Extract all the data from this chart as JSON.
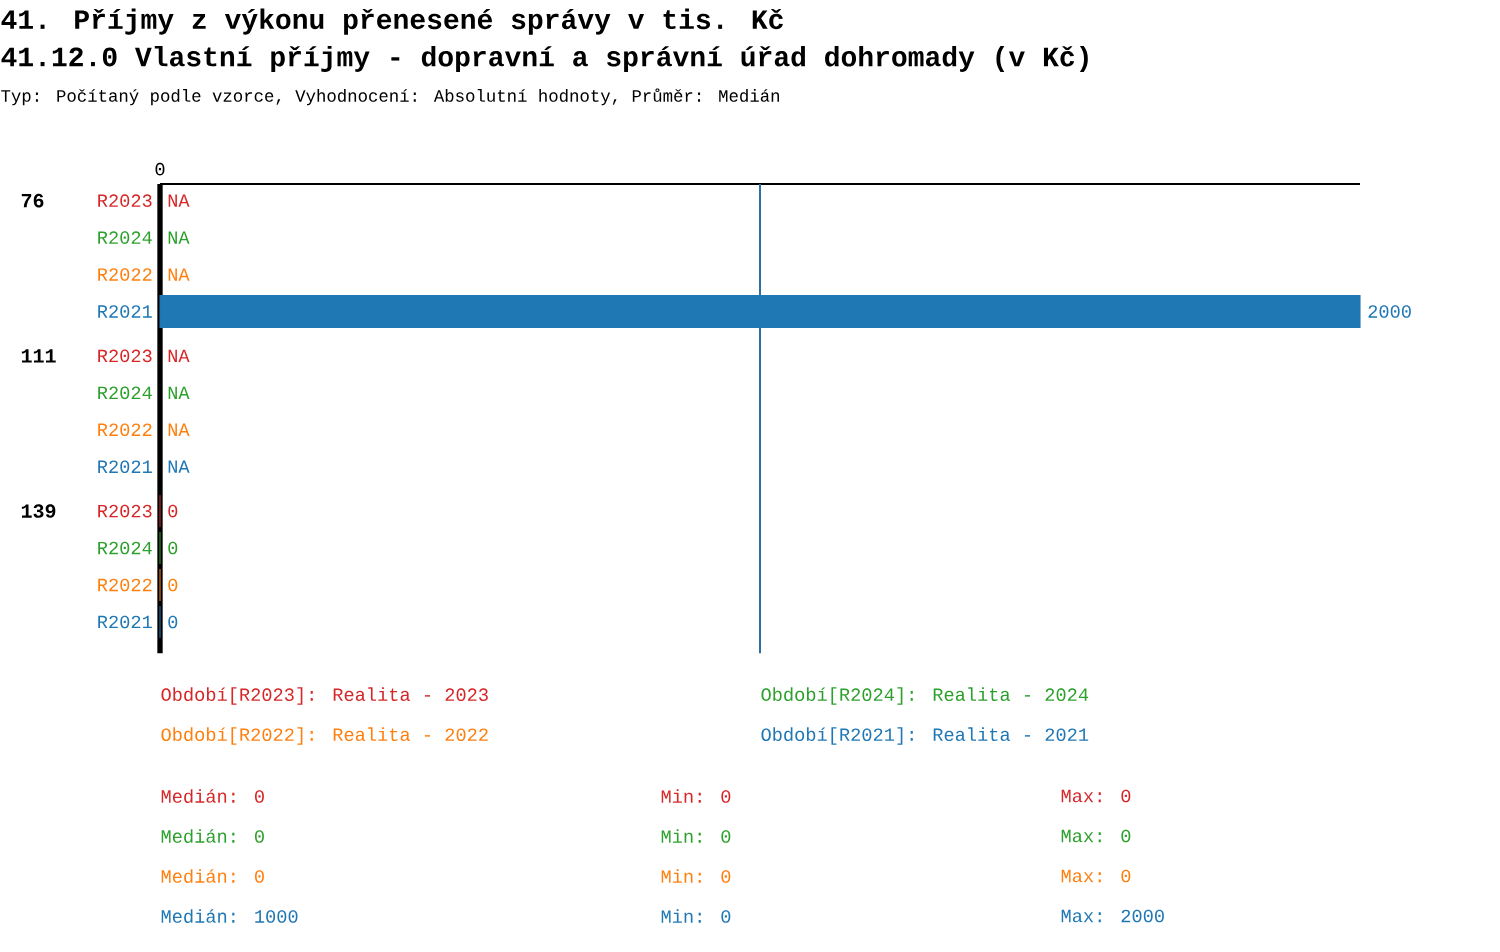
{
  "chart_data": {
    "type": "bar",
    "orientation": "horizontal",
    "title": "41. Příjmy z výkonu přenesené správy v tis. Kč",
    "subtitle": "41.12.0 Vlastní příjmy - dopravní a správní úřad dohromady (v Kč)",
    "categories": [
      "76",
      "111",
      "139"
    ],
    "series": [
      {
        "name": "R2023",
        "color": "#d62728",
        "values": [
          null,
          null,
          0
        ],
        "value_labels": [
          "NA",
          "NA",
          "0"
        ]
      },
      {
        "name": "R2024",
        "color": "#2ca02c",
        "values": [
          null,
          null,
          0
        ],
        "value_labels": [
          "NA",
          "NA",
          "0"
        ]
      },
      {
        "name": "R2022",
        "color": "#ff7f0e",
        "values": [
          null,
          null,
          0
        ],
        "value_labels": [
          "NA",
          "NA",
          "0"
        ]
      },
      {
        "name": "R2021",
        "color": "#1f77b4",
        "values": [
          2000,
          null,
          0
        ],
        "value_labels": [
          "2000",
          "NA",
          "0"
        ]
      }
    ],
    "ref_lines": [
      {
        "axis": "x",
        "value": 1000,
        "color": "#2f6fa0"
      }
    ],
    "annotations": [
      "0",
      "Typ: Počítaný podle vzorce, Vyhodnocení: Absolutní hodnoty, Průměr: Medián",
      "Období[R2023]: Realita - 2023",
      "Období[R2024]: Realita - 2024",
      "Období[R2022]: Realita - 2022",
      "Období[R2021]: Realita - 2021",
      "Medián: 0",
      "Min: 0",
      "Max: 0",
      "Medián: 0",
      "Min: 0",
      "Max: 0",
      "Medián: 0",
      "Min: 0",
      "Max: 0",
      "Medián: 1000",
      "Min: 0",
      "Max: 2000"
    ]
  }
}
